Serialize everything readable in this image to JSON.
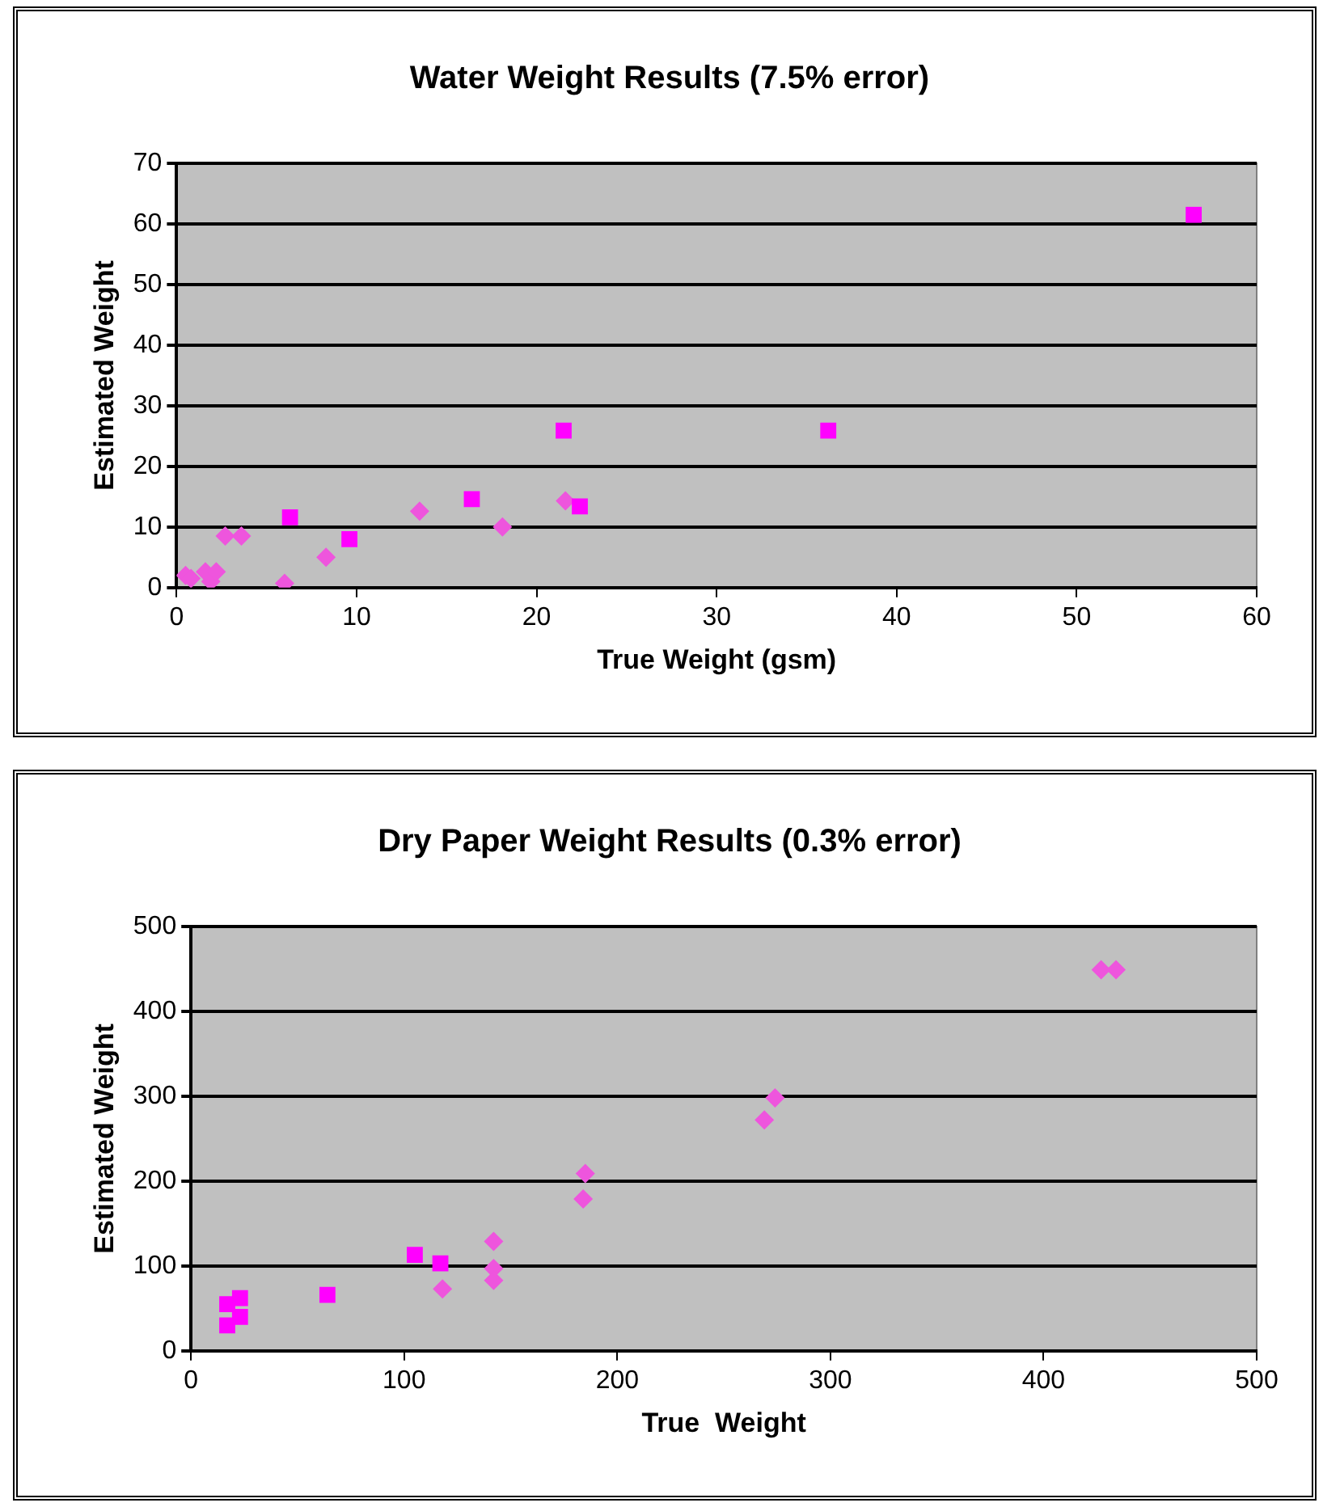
{
  "chart_data": [
    {
      "type": "scatter",
      "title": "Water Weight Results (7.5% error)",
      "xlabel": "True Weight (gsm)",
      "ylabel": "Estimated Weight",
      "xlim": [
        0,
        60
      ],
      "xticks": [
        0,
        10,
        20,
        30,
        40,
        50,
        60
      ],
      "ylim": [
        0,
        70
      ],
      "yticks": [
        0,
        10,
        20,
        30,
        40,
        50,
        60,
        70
      ],
      "grid": "y",
      "legend": false,
      "series": [
        {
          "color": "#ff00ff",
          "marker": "square",
          "x": [
            6.3,
            9.6,
            16.4,
            21.5,
            22.4,
            36.2,
            56.5
          ],
          "values": [
            11.6,
            8.0,
            14.6,
            25.9,
            13.4,
            25.9,
            61.5
          ]
        },
        {
          "color": "#ee55dd",
          "marker": "diamond",
          "x": [
            0.5,
            0.8,
            1.6,
            1.9,
            2.2,
            2.7,
            3.6,
            6.0,
            8.3,
            13.5,
            18.1,
            21.6
          ],
          "values": [
            2.0,
            1.5,
            2.6,
            1.0,
            2.6,
            8.5,
            8.5,
            0.7,
            5.0,
            12.6,
            10.0,
            14.3
          ]
        }
      ]
    },
    {
      "type": "scatter",
      "title": "Dry Paper Weight Results (0.3% error)",
      "xlabel": "True  Weight",
      "ylabel": "Estimated Weight",
      "xlim": [
        0,
        500
      ],
      "xticks": [
        0,
        100,
        200,
        300,
        400,
        500
      ],
      "ylim": [
        0,
        500
      ],
      "yticks": [
        0,
        100,
        200,
        300,
        400,
        500
      ],
      "grid": "y",
      "legend": false,
      "series": [
        {
          "color": "#ff00ff",
          "marker": "square",
          "x": [
            17,
            17,
            23,
            23,
            64,
            105,
            117
          ],
          "values": [
            30,
            55,
            40,
            62,
            66,
            113,
            103
          ]
        },
        {
          "color": "#ee55dd",
          "marker": "diamond",
          "x": [
            118,
            142,
            142,
            142,
            184,
            185,
            269,
            274,
            427,
            434
          ],
          "values": [
            73,
            129,
            97,
            83,
            179,
            209,
            272,
            298,
            449,
            449
          ]
        }
      ]
    }
  ]
}
